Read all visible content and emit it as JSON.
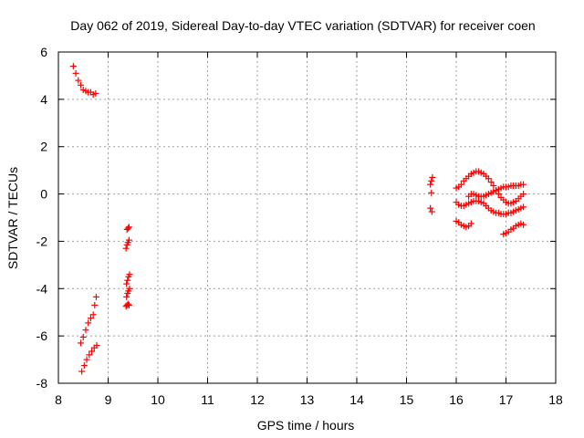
{
  "chart_data": {
    "type": "scatter",
    "title": "Day 062 of 2019, Sidereal Day-to-day VTEC variation (SDTVAR) for receiver coen",
    "xlabel": "GPS time / hours",
    "ylabel": "SDTVAR / TECUs",
    "xlim": [
      8,
      18
    ],
    "ylim": [
      -8,
      6
    ],
    "xticks": [
      8,
      9,
      10,
      11,
      12,
      13,
      14,
      15,
      16,
      17,
      18
    ],
    "yticks": [
      -8,
      -6,
      -4,
      -2,
      0,
      2,
      4,
      6
    ],
    "xtick_labels": [
      "8",
      "9",
      "10",
      "11",
      "12",
      "13",
      "14",
      "15",
      "16",
      "17",
      "18"
    ],
    "ytick_labels": [
      "-8",
      "-6",
      "-4",
      "-2",
      "0",
      "2",
      "4",
      "6"
    ],
    "grid": true,
    "marker": "plus",
    "marker_color": "#ff0000",
    "series": [
      {
        "name": "SDTVAR",
        "tracks": [
          {
            "x": [
              8.3,
              8.35,
              8.4,
              8.45,
              8.5,
              8.55,
              8.6,
              8.65,
              8.7,
              8.75
            ],
            "y": [
              5.4,
              5.1,
              4.8,
              4.6,
              4.4,
              4.35,
              4.3,
              4.3,
              4.2,
              4.25
            ]
          },
          {
            "x": [
              8.45,
              8.5,
              8.55,
              8.6,
              8.65,
              8.7,
              8.73,
              8.76
            ],
            "y": [
              -6.3,
              -6.05,
              -5.75,
              -5.45,
              -5.25,
              -5.1,
              -4.7,
              -4.35
            ]
          },
          {
            "x": [
              8.47,
              8.52,
              8.57,
              8.62,
              8.67,
              8.72,
              8.77
            ],
            "y": [
              -7.5,
              -7.25,
              -7.0,
              -6.8,
              -6.65,
              -6.5,
              -6.4
            ]
          },
          {
            "x": [
              9.38,
              9.4,
              9.42
            ],
            "y": [
              -1.5,
              -1.45,
              -1.4
            ]
          },
          {
            "x": [
              9.36,
              9.38,
              9.4,
              9.42
            ],
            "y": [
              -2.3,
              -2.15,
              -2.05,
              -1.95
            ]
          },
          {
            "x": [
              9.37,
              9.39,
              9.41,
              9.43
            ],
            "y": [
              -3.8,
              -3.65,
              -3.5,
              -3.4
            ]
          },
          {
            "x": [
              9.37,
              9.39,
              9.41,
              9.43
            ],
            "y": [
              -4.35,
              -4.2,
              -4.1,
              -4.0
            ]
          },
          {
            "x": [
              9.36,
              9.38,
              9.4,
              9.42
            ],
            "y": [
              -4.75,
              -4.7,
              -4.65,
              -4.7
            ]
          },
          {
            "x": [
              15.48,
              15.5,
              15.52
            ],
            "y": [
              0.4,
              0.55,
              0.7
            ]
          },
          {
            "x": [
              15.5
            ],
            "y": [
              0.05
            ]
          },
          {
            "x": [
              15.48,
              15.51
            ],
            "y": [
              -0.6,
              -0.75
            ]
          },
          {
            "x": [
              16.0,
              16.05,
              16.1,
              16.15,
              16.2,
              16.25,
              16.3,
              16.35,
              16.4,
              16.45,
              16.5,
              16.55,
              16.6,
              16.65,
              16.7,
              16.75,
              16.8,
              16.85,
              16.9,
              16.95,
              17.0,
              17.05,
              17.1,
              17.15,
              17.2,
              17.25,
              17.3,
              17.35
            ],
            "y": [
              0.25,
              0.3,
              0.4,
              0.55,
              0.65,
              0.75,
              0.85,
              0.9,
              0.95,
              0.95,
              0.9,
              0.85,
              0.75,
              0.65,
              0.5,
              0.35,
              0.15,
              0.0,
              -0.15,
              -0.25,
              -0.35,
              -0.4,
              -0.4,
              -0.35,
              -0.3,
              -0.2,
              -0.1,
              0.0
            ]
          },
          {
            "x": [
              16.0,
              16.05,
              16.1,
              16.15,
              16.2,
              16.25,
              16.3,
              16.35,
              16.4,
              16.45,
              16.5,
              16.55,
              16.6,
              16.65,
              16.7,
              16.75,
              16.8,
              16.85,
              16.9,
              16.95,
              17.0,
              17.05,
              17.1,
              17.15,
              17.2,
              17.25,
              17.3,
              17.35
            ],
            "y": [
              -0.35,
              -0.45,
              -0.5,
              -0.5,
              -0.45,
              -0.4,
              -0.35,
              -0.3,
              -0.3,
              -0.3,
              -0.35,
              -0.4,
              -0.5,
              -0.6,
              -0.7,
              -0.75,
              -0.8,
              -0.8,
              -0.85,
              -0.85,
              -0.85,
              -0.8,
              -0.8,
              -0.75,
              -0.7,
              -0.65,
              -0.6,
              -0.55
            ]
          },
          {
            "x": [
              16.25,
              16.3,
              16.35,
              16.4,
              16.45,
              16.5,
              16.55,
              16.6,
              16.65,
              16.7,
              16.75,
              16.8,
              16.85,
              16.9,
              16.95,
              17.0,
              17.05,
              17.1,
              17.15,
              17.2,
              17.25,
              17.3,
              17.35
            ],
            "y": [
              -0.1,
              0.0,
              0.0,
              -0.05,
              -0.1,
              -0.1,
              -0.1,
              -0.05,
              0.0,
              0.05,
              0.1,
              0.15,
              0.2,
              0.25,
              0.3,
              0.3,
              0.3,
              0.35,
              0.35,
              0.35,
              0.35,
              0.4,
              0.4
            ]
          },
          {
            "x": [
              16.0,
              16.05,
              16.1,
              16.15,
              16.2,
              16.25,
              16.3
            ],
            "y": [
              -1.15,
              -1.2,
              -1.3,
              -1.35,
              -1.4,
              -1.35,
              -1.25
            ]
          },
          {
            "x": [
              16.95,
              17.0,
              17.05,
              17.1,
              17.15,
              17.2,
              17.25,
              17.3,
              17.35
            ],
            "y": [
              -1.7,
              -1.65,
              -1.6,
              -1.5,
              -1.45,
              -1.35,
              -1.3,
              -1.25,
              -1.3
            ]
          }
        ]
      }
    ]
  }
}
